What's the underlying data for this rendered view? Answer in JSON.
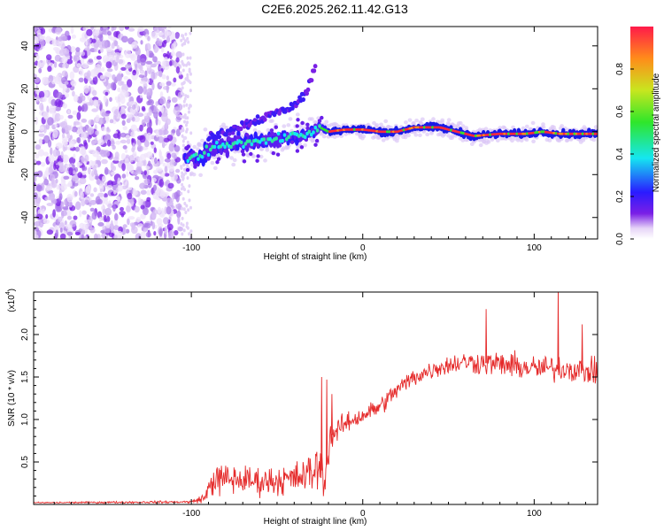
{
  "title": "C2E6.2025.262.11.42.G13",
  "chart_data": [
    {
      "type": "heatmap",
      "xlabel": "Height of straight line (km)",
      "ylabel": "Frequency (Hz)",
      "xlim": [
        -192,
        137
      ],
      "ylim": [
        -50,
        49
      ],
      "xticks": [
        -100,
        0,
        100
      ],
      "xtick_labels": [
        "-100",
        "0",
        "100"
      ],
      "yticks": [
        -40,
        -20,
        0,
        20,
        40
      ],
      "ytick_labels": [
        "-40",
        "-20",
        "0",
        "20",
        "40"
      ],
      "noise_region_x": [
        -192,
        -106
      ],
      "ridge": [
        {
          "x": -104,
          "y": -13,
          "w": 4
        },
        {
          "x": -95,
          "y": -12,
          "w": 5
        },
        {
          "x": -90,
          "y": -8,
          "w": 5
        },
        {
          "x": -80,
          "y": -6,
          "w": 5
        },
        {
          "x": -70,
          "y": -5,
          "w": 5
        },
        {
          "x": -60,
          "y": -5,
          "w": 4
        },
        {
          "x": -50,
          "y": -3,
          "w": 4
        },
        {
          "x": -40,
          "y": -2,
          "w": 4
        },
        {
          "x": -30,
          "y": -1,
          "w": 4
        },
        {
          "x": -25,
          "y": 2,
          "w": 3
        },
        {
          "x": -20,
          "y": 0,
          "w": 2
        },
        {
          "x": -10,
          "y": 1,
          "w": 2
        },
        {
          "x": 0,
          "y": 1,
          "w": 2
        },
        {
          "x": 10,
          "y": 0,
          "w": 2
        },
        {
          "x": 20,
          "y": 0,
          "w": 2
        },
        {
          "x": 30,
          "y": 2,
          "w": 2
        },
        {
          "x": 45,
          "y": 2,
          "w": 2
        },
        {
          "x": 55,
          "y": 0,
          "w": 2
        },
        {
          "x": 65,
          "y": -2,
          "w": 2
        },
        {
          "x": 80,
          "y": -1,
          "w": 2
        },
        {
          "x": 95,
          "y": -1,
          "w": 2
        },
        {
          "x": 105,
          "y": 0,
          "w": 2
        },
        {
          "x": 115,
          "y": -1,
          "w": 2
        },
        {
          "x": 125,
          "y": -1,
          "w": 2
        },
        {
          "x": 137,
          "y": -1,
          "w": 2
        }
      ],
      "upper_branch": [
        {
          "x": -90,
          "y": -3
        },
        {
          "x": -80,
          "y": 0
        },
        {
          "x": -70,
          "y": 3
        },
        {
          "x": -60,
          "y": 6
        },
        {
          "x": -50,
          "y": 9
        },
        {
          "x": -40,
          "y": 12
        },
        {
          "x": -33,
          "y": 18
        },
        {
          "x": -30,
          "y": 25
        },
        {
          "x": -27,
          "y": 32
        }
      ]
    },
    {
      "type": "line",
      "series_name": "SNR",
      "color": "#e52a2a",
      "xlabel": "Height of straight line (km)",
      "ylabel": "SNR (10 * v/v)",
      "scale_label": "(x10",
      "scale_exponent": "4",
      "xlim": [
        -192,
        137
      ],
      "ylim": [
        0,
        2.5
      ],
      "xticks": [
        -100,
        0,
        100
      ],
      "xtick_labels": [
        "-100",
        "0",
        "100"
      ],
      "yticks": [
        0.5,
        1.0,
        1.5,
        2.0
      ],
      "ytick_labels": [
        "0.5",
        "1.0",
        "1.5",
        "2.0"
      ],
      "profile": [
        {
          "x": -192,
          "mean": 0.02,
          "spread": 0.01
        },
        {
          "x": -100,
          "mean": 0.03,
          "spread": 0.02
        },
        {
          "x": -92,
          "mean": 0.08,
          "spread": 0.08
        },
        {
          "x": -88,
          "mean": 0.28,
          "spread": 0.25
        },
        {
          "x": -80,
          "mean": 0.3,
          "spread": 0.25
        },
        {
          "x": -60,
          "mean": 0.27,
          "spread": 0.22
        },
        {
          "x": -40,
          "mean": 0.3,
          "spread": 0.25
        },
        {
          "x": -32,
          "mean": 0.35,
          "spread": 0.3
        },
        {
          "x": -25,
          "mean": 0.45,
          "spread": 0.4
        },
        {
          "x": -22,
          "mean": 0.3,
          "spread": 0.3
        },
        {
          "x": -19,
          "mean": 0.8,
          "spread": 0.25
        },
        {
          "x": -10,
          "mean": 0.95,
          "spread": 0.15
        },
        {
          "x": 0,
          "mean": 1.05,
          "spread": 0.15
        },
        {
          "x": 10,
          "mean": 1.15,
          "spread": 0.15
        },
        {
          "x": 20,
          "mean": 1.35,
          "spread": 0.15
        },
        {
          "x": 30,
          "mean": 1.5,
          "spread": 0.15
        },
        {
          "x": 45,
          "mean": 1.62,
          "spread": 0.15
        },
        {
          "x": 60,
          "mean": 1.68,
          "spread": 0.17
        },
        {
          "x": 80,
          "mean": 1.65,
          "spread": 0.2
        },
        {
          "x": 100,
          "mean": 1.6,
          "spread": 0.2
        },
        {
          "x": 120,
          "mean": 1.6,
          "spread": 0.2
        },
        {
          "x": 137,
          "mean": 1.55,
          "spread": 0.2
        }
      ],
      "spikes": [
        {
          "x": -24,
          "y": 1.5
        },
        {
          "x": -21,
          "y": 1.47
        },
        {
          "x": -18,
          "y": 1.3
        },
        {
          "x": 72,
          "y": 2.3
        },
        {
          "x": 114,
          "y": 2.55
        },
        {
          "x": 128,
          "y": 2.12
        }
      ]
    }
  ],
  "colorbar": {
    "label": "Normalized spectral amplitude",
    "range": [
      0,
      1
    ],
    "ticks": [
      0.0,
      0.2,
      0.4,
      0.6,
      0.8
    ],
    "tick_labels": [
      "0.0",
      "0.2",
      "0.4",
      "0.6",
      "0.8"
    ],
    "stops": [
      "#ffffff",
      "#e6d4f7",
      "#7a1fe6",
      "#2a1bff",
      "#15e6f0",
      "#2fe62a",
      "#c8e61f",
      "#ff8c1a",
      "#ff1a4a"
    ]
  }
}
